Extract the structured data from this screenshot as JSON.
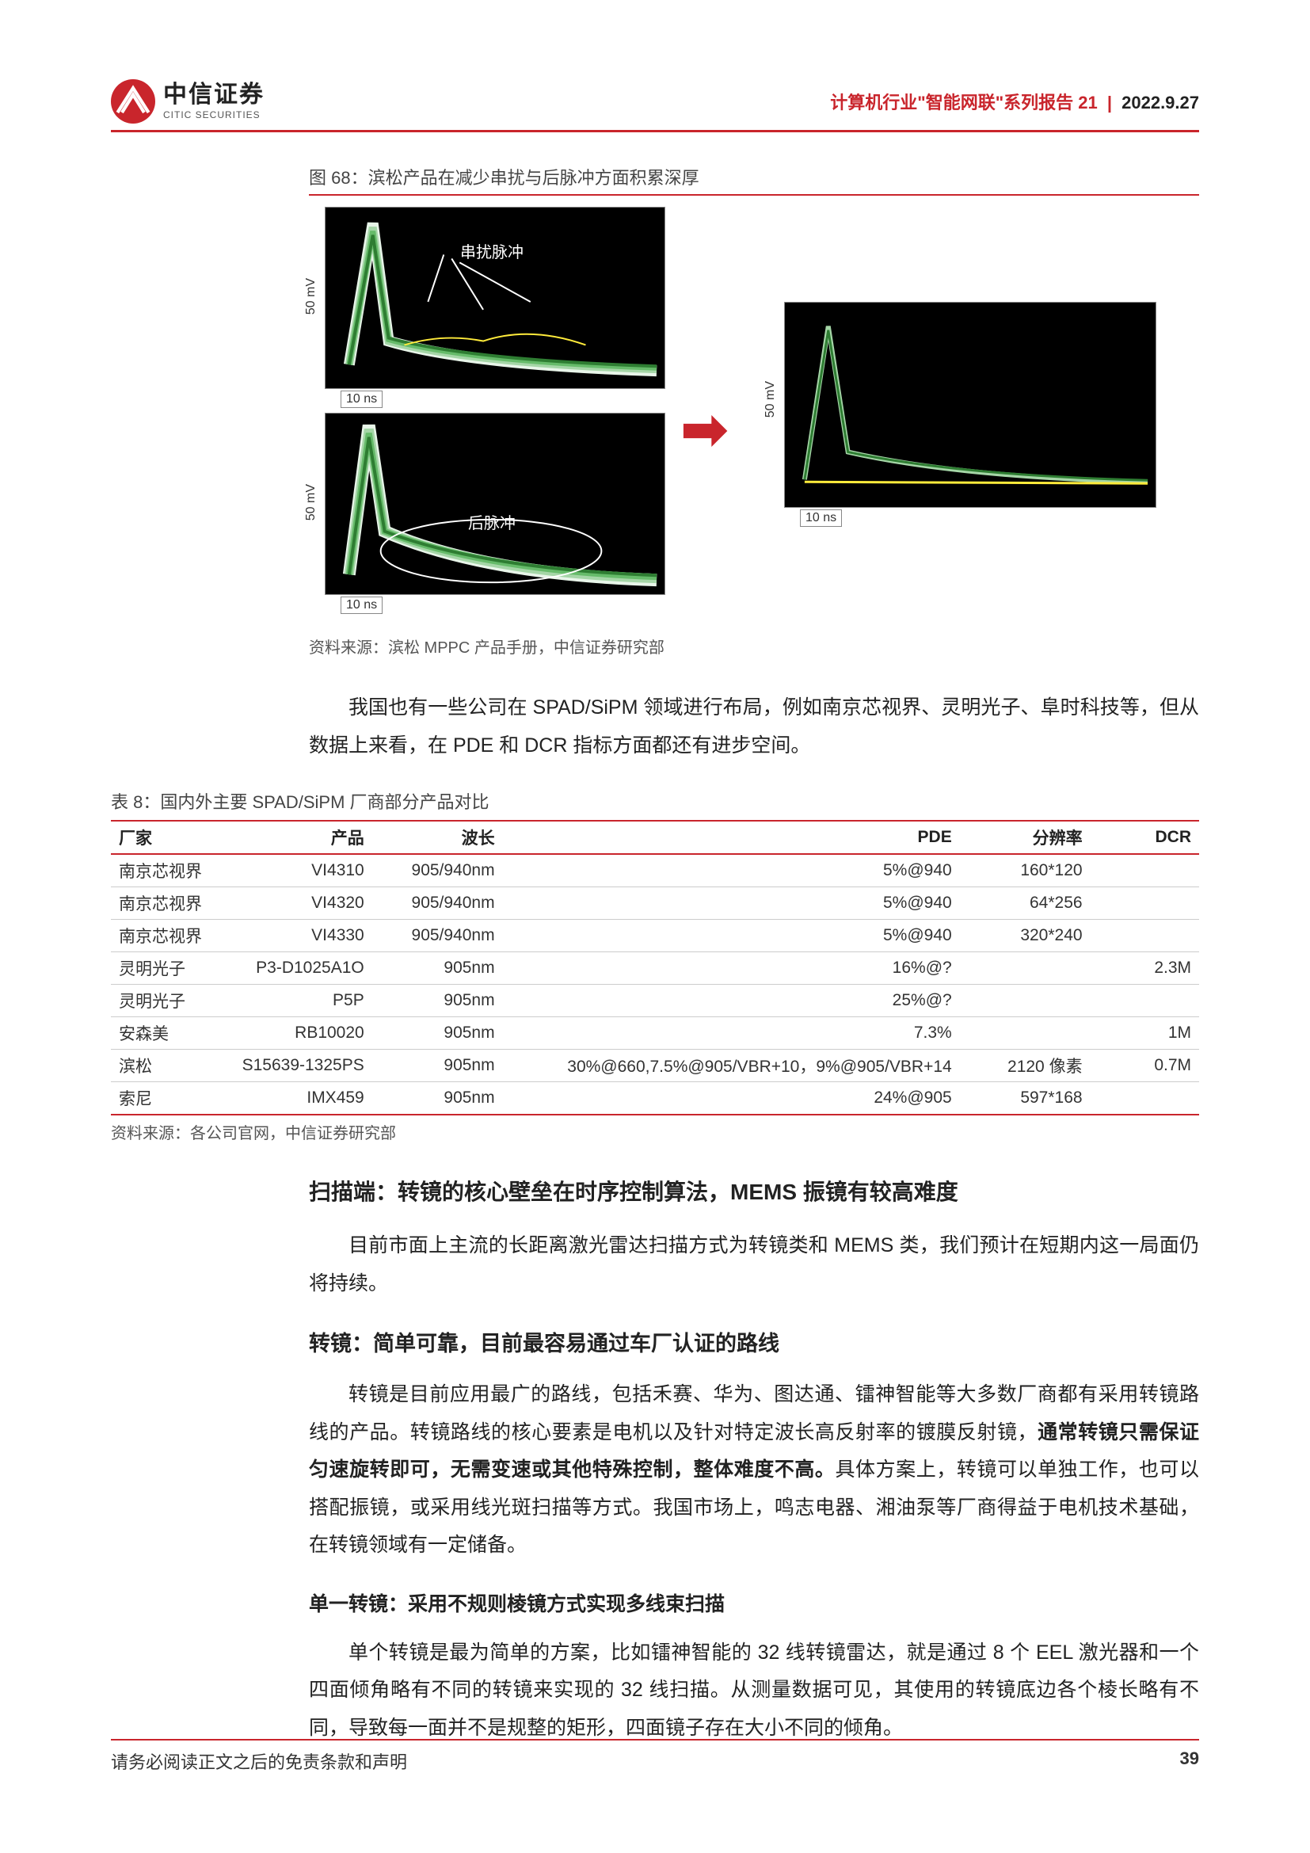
{
  "header": {
    "logo_cn": "中信证券",
    "logo_en": "CITIC SECURITIES",
    "title_red": "计算机行业\"智能网联\"系列报告 21",
    "date": "2022.9.27"
  },
  "figure68": {
    "caption": "图 68：滨松产品在减少串扰与后脉冲方面积累深厚",
    "source": "资料来源：滨松 MPPC 产品手册，中信证券研究部",
    "anno_top": "串扰脉冲",
    "anno_bot": "后脉冲",
    "xaxis_label": "10 ns",
    "yaxis_label_left": "50 mV",
    "yaxis_label_right": "50 mV",
    "curve_colors": [
      "#12411c",
      "#2e7d32",
      "#66bb6a",
      "#a5d6a7",
      "#e8f5e9",
      "#ffeb3b"
    ],
    "bg_color": "#000000",
    "arrow_color": "#c9252c"
  },
  "para1": "我国也有一些公司在 SPAD/SiPM 领域进行布局，例如南京芯视界、灵明光子、阜时科技等，但从数据上来看，在 PDE 和 DCR 指标方面都还有进步空间。",
  "table8": {
    "caption": "表 8：国内外主要 SPAD/SiPM 厂商部分产品对比",
    "source": "资料来源：各公司官网，中信证券研究部",
    "columns": [
      "厂家",
      "产品",
      "波长",
      "PDE",
      "分辨率",
      "DCR"
    ],
    "rows": [
      [
        "南京芯视界",
        "VI4310",
        "905/940nm",
        "5%@940",
        "160*120",
        ""
      ],
      [
        "南京芯视界",
        "VI4320",
        "905/940nm",
        "5%@940",
        "64*256",
        ""
      ],
      [
        "南京芯视界",
        "VI4330",
        "905/940nm",
        "5%@940",
        "320*240",
        ""
      ],
      [
        "灵明光子",
        "P3-D1025A1O",
        "905nm",
        "16%@?",
        "",
        "2.3M"
      ],
      [
        "灵明光子",
        "P5P",
        "905nm",
        "25%@?",
        "",
        ""
      ],
      [
        "安森美",
        "RB10020",
        "905nm",
        "7.3%",
        "",
        "1M"
      ],
      [
        "滨松",
        "S15639-1325PS",
        "905nm",
        "30%@660,7.5%@905/VBR+10，9%@905/VBR+14",
        "2120 像素",
        "0.7M"
      ],
      [
        "索尼",
        "IMX459",
        "905nm",
        "24%@905",
        "597*168",
        ""
      ]
    ],
    "header_border_color": "#c9252c",
    "row_border_color": "#cccccc"
  },
  "h2_1": "扫描端：转镜的核心壁垒在时序控制算法，MEMS 振镜有较高难度",
  "para2": "目前市面上主流的长距离激光雷达扫描方式为转镜类和 MEMS 类，我们预计在短期内这一局面仍将持续。",
  "h3_1": "转镜：简单可靠，目前最容易通过车厂认证的路线",
  "para3_lead": "转镜是目前应用最广的路线，包括禾赛、华为、图达通、镭神智能等大多数厂商都有采用转镜路线的产品。转镜路线的核心要素是电机以及针对特定波长高反射率的镀膜反射镜，",
  "para3_bold": "通常转镜只需保证匀速旋转即可，无需变速或其他特殊控制，整体难度不高。",
  "para3_tail": "具体方案上，转镜可以单独工作，也可以搭配振镜，或采用线光斑扫描等方式。我国市场上，鸣志电器、湘油泵等厂商得益于电机技术基础，在转镜领域有一定储备。",
  "h4_1": "单一转镜：采用不规则棱镜方式实现多线束扫描",
  "para4": "单个转镜是最为简单的方案，比如镭神智能的 32 线转镜雷达，就是通过 8 个 EEL 激光器和一个四面倾角略有不同的转镜来实现的 32 线扫描。从测量数据可见，其使用的转镜底边各个棱长略有不同，导致每一面并不是规整的矩形，四面镜子存在大小不同的倾角。",
  "footer": {
    "disclaimer": "请务必阅读正文之后的免责条款和声明",
    "page": "39"
  }
}
